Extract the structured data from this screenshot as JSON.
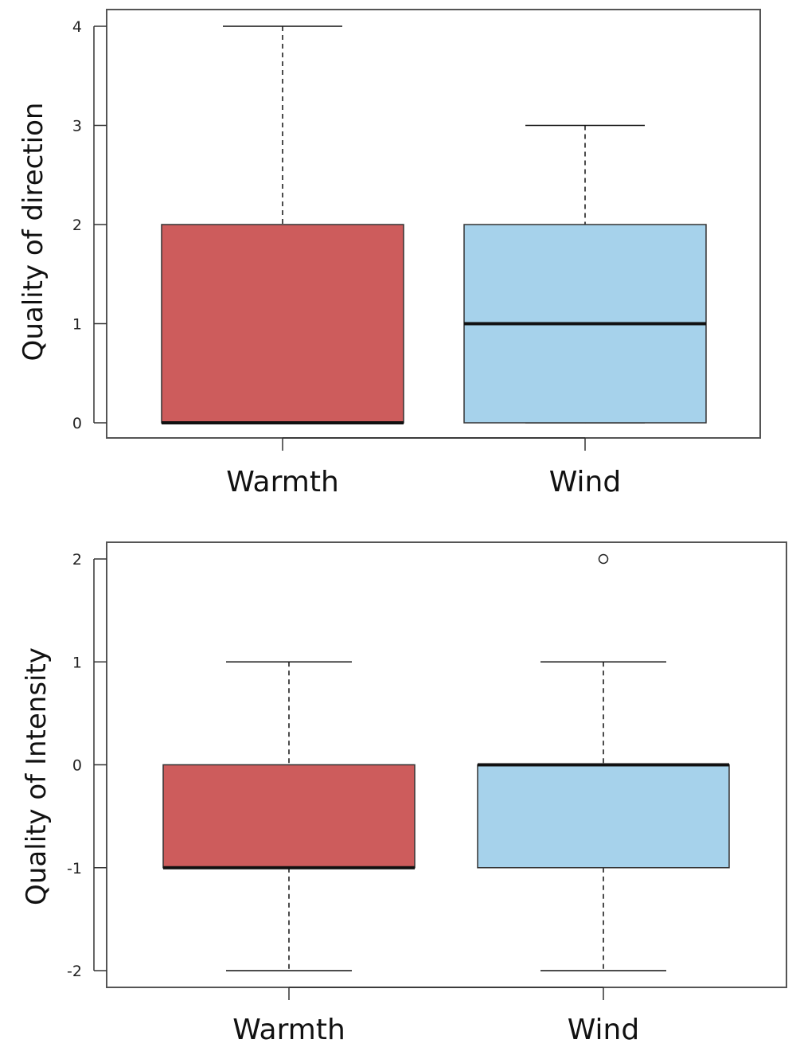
{
  "chart_data": [
    {
      "type": "box",
      "ylabel": "Quality of direction",
      "ylim": [
        0,
        4
      ],
      "yticks": [
        0,
        1,
        2,
        3,
        4
      ],
      "categories": [
        "Warmth",
        "Wind"
      ],
      "boxes": [
        {
          "name": "Warmth",
          "min": 0,
          "q1": 0,
          "median": 0,
          "q3": 2,
          "max": 4,
          "outliers": [],
          "color": "#cd5c5c"
        },
        {
          "name": "Wind",
          "min": 0,
          "q1": 0,
          "median": 1,
          "q3": 2,
          "max": 3,
          "outliers": [],
          "color": "#a6d2eb"
        }
      ]
    },
    {
      "type": "box",
      "ylabel": "Quality of Intensity",
      "ylim": [
        -2,
        2
      ],
      "yticks": [
        -2,
        -1,
        0,
        1,
        2
      ],
      "categories": [
        "Warmth",
        "Wind"
      ],
      "boxes": [
        {
          "name": "Warmth",
          "min": -2,
          "q1": -1,
          "median": -1,
          "q3": 0,
          "max": 1,
          "outliers": [],
          "color": "#cd5c5c"
        },
        {
          "name": "Wind",
          "min": -2,
          "q1": -1,
          "median": 0,
          "q3": 0,
          "max": 1,
          "outliers": [
            2
          ],
          "color": "#a6d2eb"
        }
      ]
    }
  ]
}
